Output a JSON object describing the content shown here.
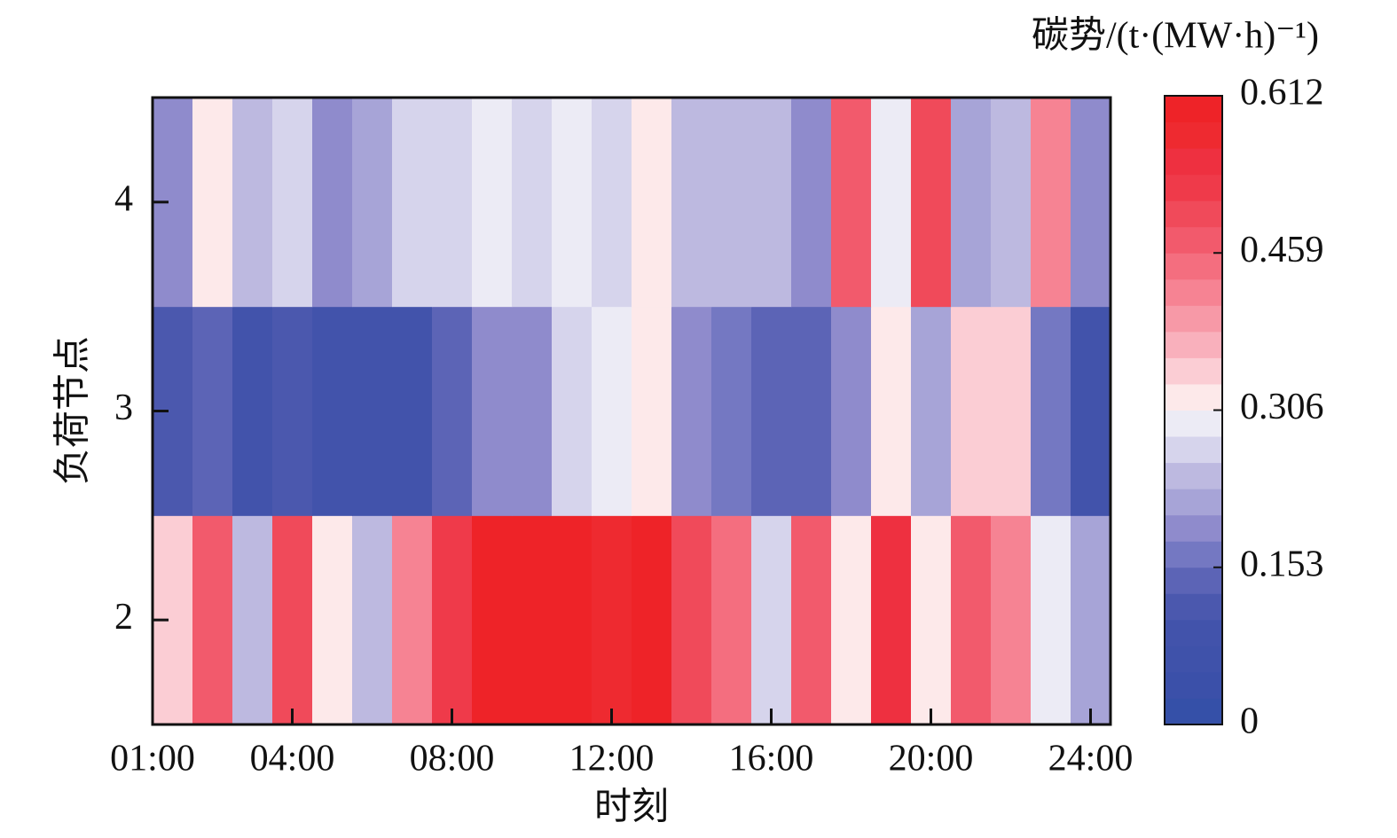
{
  "chart_data": {
    "type": "heatmap",
    "xlabel": "时刻",
    "ylabel": "负荷节点",
    "colorbar_label": "碳势/(t·(MW·h)⁻¹)",
    "x": [
      1,
      2,
      3,
      4,
      5,
      6,
      7,
      8,
      9,
      10,
      11,
      12,
      13,
      14,
      15,
      16,
      17,
      18,
      19,
      20,
      21,
      22,
      23,
      24
    ],
    "y": [
      2,
      3,
      4
    ],
    "z": [
      [
        0.344,
        0.472,
        0.242,
        0.497,
        0.319,
        0.242,
        0.421,
        0.523,
        0.599,
        0.599,
        0.599,
        0.574,
        0.599,
        0.497,
        0.446,
        0.268,
        0.472,
        0.319,
        0.548,
        0.319,
        0.472,
        0.421,
        0.293,
        0.217
      ],
      [
        0.115,
        0.14,
        0.089,
        0.115,
        0.089,
        0.089,
        0.089,
        0.14,
        0.191,
        0.191,
        0.268,
        0.293,
        0.319,
        0.191,
        0.166,
        0.14,
        0.14,
        0.191,
        0.319,
        0.217,
        0.344,
        0.344,
        0.166,
        0.089
      ],
      [
        0.191,
        0.319,
        0.242,
        0.268,
        0.191,
        0.217,
        0.268,
        0.268,
        0.293,
        0.268,
        0.293,
        0.268,
        0.319,
        0.242,
        0.242,
        0.242,
        0.191,
        0.472,
        0.293,
        0.497,
        0.217,
        0.242,
        0.421,
        0.191
      ]
    ],
    "xlim": [
      0.5,
      24.5
    ],
    "xticks": [
      {
        "value": 0.5,
        "label": "01:00"
      },
      {
        "value": 4,
        "label": "04:00"
      },
      {
        "value": 8,
        "label": "08:00"
      },
      {
        "value": 12,
        "label": "12:00"
      },
      {
        "value": 16,
        "label": "16:00"
      },
      {
        "value": 20,
        "label": "20:00"
      },
      {
        "value": 24,
        "label": "24:00"
      }
    ],
    "ylim": [
      1.5,
      4.5
    ],
    "yticks": [
      2,
      3,
      4
    ],
    "clim": [
      0,
      0.612
    ],
    "cticks": [
      0,
      0.153,
      0.306,
      0.459,
      0.612
    ],
    "colormap": [
      "#3550a8",
      "#3b50a9",
      "#3f52aa",
      "#4253ab",
      "#4b58ae",
      "#5c64b6",
      "#7478c2",
      "#8f8bcc",
      "#a7a4d7",
      "#bdb9e0",
      "#d6d4ec",
      "#ecebf5",
      "#fde9ea",
      "#fbcdd4",
      "#f9b0bc",
      "#f799a7",
      "#f68393",
      "#f46e7f",
      "#f25a6c",
      "#f04a5a",
      "#ef3a4a",
      "#ee3040",
      "#ee2a30",
      "#ee2328"
    ]
  }
}
